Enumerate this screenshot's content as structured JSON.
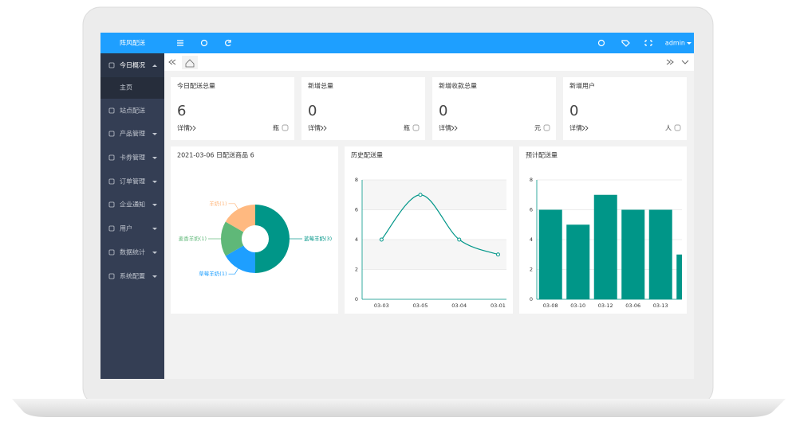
{
  "header": {
    "logo": "阵风配送",
    "user": "admin"
  },
  "sidebar": [
    "今日概况",
    "主页",
    "站点配送",
    "产品管理",
    "卡券管理",
    "订单管理",
    "企业通知",
    "用户",
    "数据统计",
    "系统配置"
  ],
  "cards": [
    {
      "title": "今日配送总量",
      "value": "6",
      "link": "详情",
      "unit": "瓶"
    },
    {
      "title": "新增总量",
      "value": "0",
      "link": "详情",
      "unit": "瓶"
    },
    {
      "title": "新增收款总量",
      "value": "0",
      "link": "详情",
      "unit": "元"
    },
    {
      "title": "新增用户",
      "value": "0",
      "link": "详情",
      "unit": "人"
    }
  ],
  "chart_data": [
    {
      "type": "pie",
      "title": "2021-03-06 日配送商品 6",
      "labels": [
        "蓝莓羊奶(3)",
        "草莓羊奶(1)",
        "麦香羊奶(1)",
        "羊奶(1)"
      ],
      "values": [
        3,
        1,
        1,
        1
      ],
      "colors": [
        "#009688",
        "#1e9fff",
        "#5fb878",
        "#ffb980"
      ]
    },
    {
      "type": "line",
      "title": "历史配送量",
      "categories": [
        "03-03",
        "03-05",
        "03-04",
        "03-01"
      ],
      "values": [
        4,
        7,
        4,
        3
      ],
      "color": "#009688",
      "ylim": [
        0,
        8
      ],
      "yticks": [
        0,
        2,
        4,
        6,
        8
      ]
    },
    {
      "type": "bar",
      "title": "预计配送量",
      "categories": [
        "03-08",
        "03-10",
        "03-12",
        "03-06",
        "03-13",
        null
      ],
      "values": [
        6,
        5,
        7,
        6,
        6,
        3
      ],
      "color": "#009688",
      "ylim": [
        0,
        8
      ],
      "yticks": [
        0,
        2,
        4,
        6,
        8
      ],
      "grid": true
    }
  ]
}
